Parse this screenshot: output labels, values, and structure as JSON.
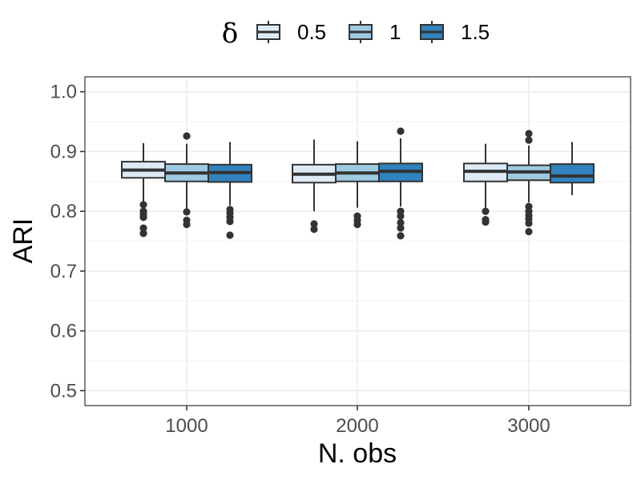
{
  "chart_data": {
    "type": "boxplot",
    "title": "",
    "xlabel": "N. obs",
    "ylabel": "ARI",
    "ylim": [
      0.475,
      1.025
    ],
    "yticks": [
      "0.5",
      "0.6",
      "0.7",
      "0.8",
      "0.9",
      "1.0"
    ],
    "categories": [
      "1000",
      "2000",
      "3000"
    ],
    "grid": true,
    "legend": {
      "title": "δ",
      "position": "top",
      "entries": [
        {
          "label": "0.5",
          "color": "#deebf7"
        },
        {
          "label": "1",
          "color": "#9ecae1"
        },
        {
          "label": "1.5",
          "color": "#3182bd"
        }
      ]
    },
    "series": [
      {
        "name": "0.5",
        "color": "#deebf7",
        "boxes": [
          {
            "category": "1000",
            "lower_whisker": 0.815,
            "q1": 0.856,
            "median": 0.869,
            "q3": 0.883,
            "upper_whisker": 0.914,
            "outliers": [
              0.811,
              0.8,
              0.795,
              0.79,
              0.772,
              0.763
            ]
          },
          {
            "category": "2000",
            "lower_whisker": 0.8,
            "q1": 0.848,
            "median": 0.862,
            "q3": 0.878,
            "upper_whisker": 0.92,
            "outliers": [
              0.779,
              0.77
            ]
          },
          {
            "category": "3000",
            "lower_whisker": 0.806,
            "q1": 0.85,
            "median": 0.867,
            "q3": 0.88,
            "upper_whisker": 0.913,
            "outliers": [
              0.8,
              0.786,
              0.782
            ]
          }
        ]
      },
      {
        "name": "1",
        "color": "#9ecae1",
        "boxes": [
          {
            "category": "1000",
            "lower_whisker": 0.805,
            "q1": 0.85,
            "median": 0.864,
            "q3": 0.879,
            "upper_whisker": 0.913,
            "outliers": [
              0.926,
              0.799,
              0.785,
              0.778
            ]
          },
          {
            "category": "2000",
            "lower_whisker": 0.806,
            "q1": 0.85,
            "median": 0.864,
            "q3": 0.879,
            "upper_whisker": 0.917,
            "outliers": [
              0.792,
              0.785,
              0.778
            ]
          },
          {
            "category": "3000",
            "lower_whisker": 0.815,
            "q1": 0.852,
            "median": 0.866,
            "q3": 0.877,
            "upper_whisker": 0.91,
            "outliers": [
              0.93,
              0.919,
              0.808,
              0.8,
              0.793,
              0.787,
              0.78,
              0.766
            ]
          }
        ]
      },
      {
        "name": "1.5",
        "color": "#3182bd",
        "boxes": [
          {
            "category": "1000",
            "lower_whisker": 0.81,
            "q1": 0.849,
            "median": 0.865,
            "q3": 0.878,
            "upper_whisker": 0.916,
            "outliers": [
              0.803,
              0.797,
              0.79,
              0.783,
              0.76
            ]
          },
          {
            "category": "2000",
            "lower_whisker": 0.808,
            "q1": 0.85,
            "median": 0.867,
            "q3": 0.88,
            "upper_whisker": 0.922,
            "outliers": [
              0.934,
              0.8,
              0.792,
              0.781,
              0.772,
              0.759
            ]
          },
          {
            "category": "3000",
            "lower_whisker": 0.827,
            "q1": 0.848,
            "median": 0.859,
            "q3": 0.879,
            "upper_whisker": 0.916,
            "outliers": []
          }
        ]
      }
    ]
  }
}
